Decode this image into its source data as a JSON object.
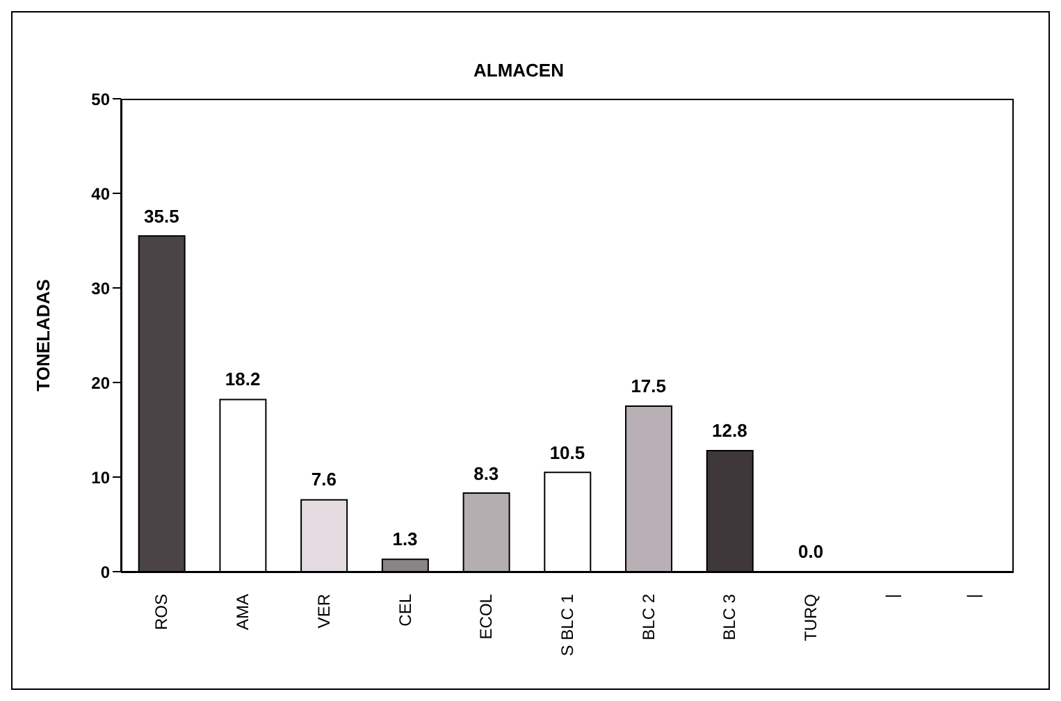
{
  "chart_data": {
    "type": "bar",
    "title": "ALMACEN",
    "ylabel": "TONELADAS",
    "categories": [
      "ROS",
      "AMA",
      "VER",
      "CEL",
      "ECOL",
      "S BLC 1",
      "BLC 2",
      "BLC 3",
      "TURQ",
      "|",
      "|"
    ],
    "values": [
      35.5,
      18.2,
      7.6,
      1.3,
      8.3,
      10.5,
      17.5,
      12.8,
      0.0,
      null,
      null
    ],
    "colors": [
      "#4a4446",
      "#ffffff",
      "#e4dce0",
      "#8a8486",
      "#b4aeb0",
      "#ffffff",
      "#b8b0b4",
      "#3e383a",
      "#ffffff",
      "#ffffff",
      "#ffffff"
    ],
    "value_labels": [
      "35.5",
      "18.2",
      "7.6",
      "1.3",
      "8.3",
      "10.5",
      "17.5",
      "12.8",
      "0.0",
      null,
      null
    ],
    "ylim": [
      0,
      50
    ],
    "yticks": [
      0,
      10,
      20,
      30,
      40,
      50
    ],
    "grid": false,
    "legend": false
  }
}
